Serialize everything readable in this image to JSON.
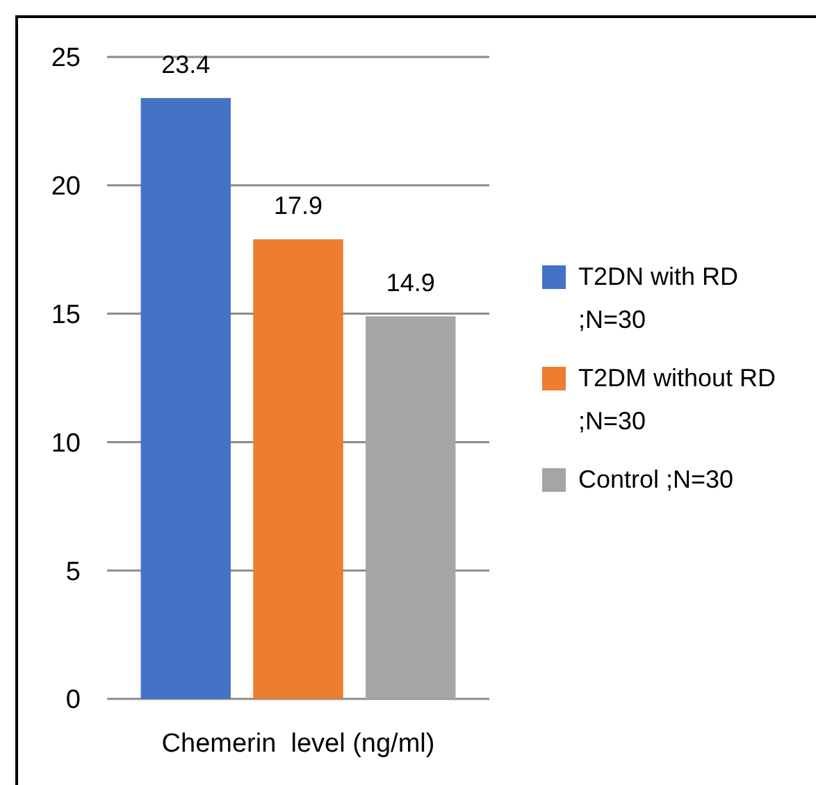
{
  "chart_data": {
    "type": "bar",
    "categories": [
      null,
      null,
      null
    ],
    "xlabel": "Chemerin  level (ng/ml)",
    "series": [
      {
        "name": "T2DN with RD ;N=30",
        "color": "#4472c4",
        "values": [
          23.4,
          null,
          null
        ]
      },
      {
        "name": "T2DM without RD ;N=30",
        "color": "#ed7d31",
        "values": [
          null,
          17.9,
          null
        ]
      },
      {
        "name": "Control ;N=30",
        "color": "#a5a5a5",
        "values": [
          null,
          null,
          14.9
        ]
      }
    ],
    "ylim": [
      0,
      25
    ],
    "yticks": [
      0,
      5,
      10,
      15,
      20,
      25
    ],
    "grid": "y",
    "data_labels": true,
    "legend": "right"
  }
}
